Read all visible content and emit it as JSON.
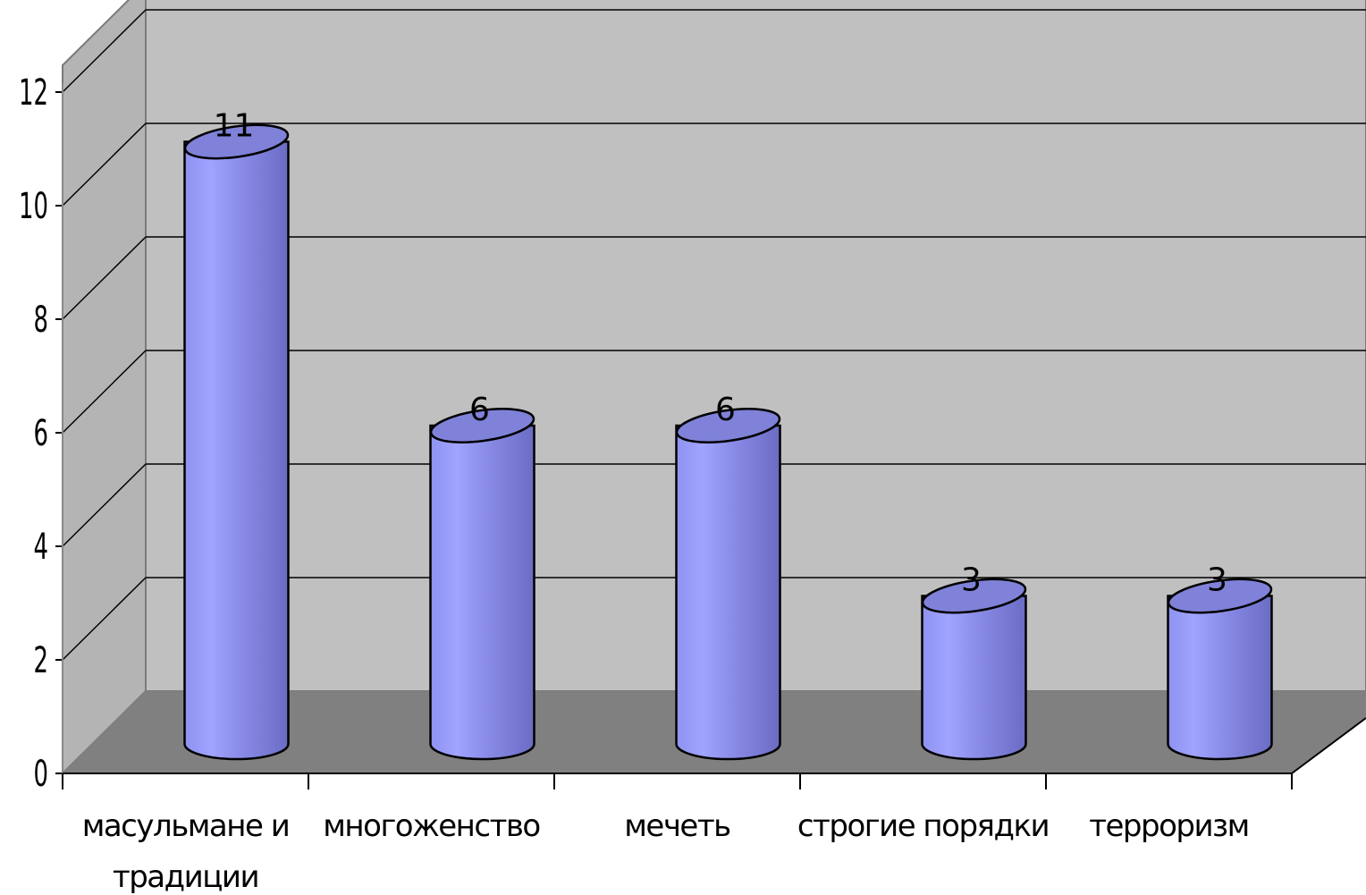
{
  "chart_data": {
    "type": "bar",
    "title": "",
    "xlabel": "",
    "ylabel": "",
    "categories": [
      [
        "масульмане и",
        "традиции"
      ],
      [
        "многоженство"
      ],
      [
        "мечеть"
      ],
      [
        "строгие порядки"
      ],
      [
        "терроризм"
      ]
    ],
    "values": [
      11,
      6,
      6,
      3,
      3
    ],
    "data_labels": [
      "11",
      "6",
      "6",
      "3",
      "3"
    ],
    "ylim": [
      0,
      12
    ],
    "yticks": [
      "0",
      "2",
      "4",
      "6",
      "8",
      "10",
      "12"
    ],
    "grid": true,
    "legend": "none",
    "style": "3d-cylinder",
    "colors": {
      "bar_light": "#a0a4ff",
      "bar_mid": "#8a8ce6",
      "bar_dark": "#6e70c8",
      "bar_top": "#7f82d8",
      "back_wall": "#c0c0c0",
      "side_wall": "#b4b4b4",
      "floor": "#808080",
      "gridline": "#000000"
    }
  }
}
